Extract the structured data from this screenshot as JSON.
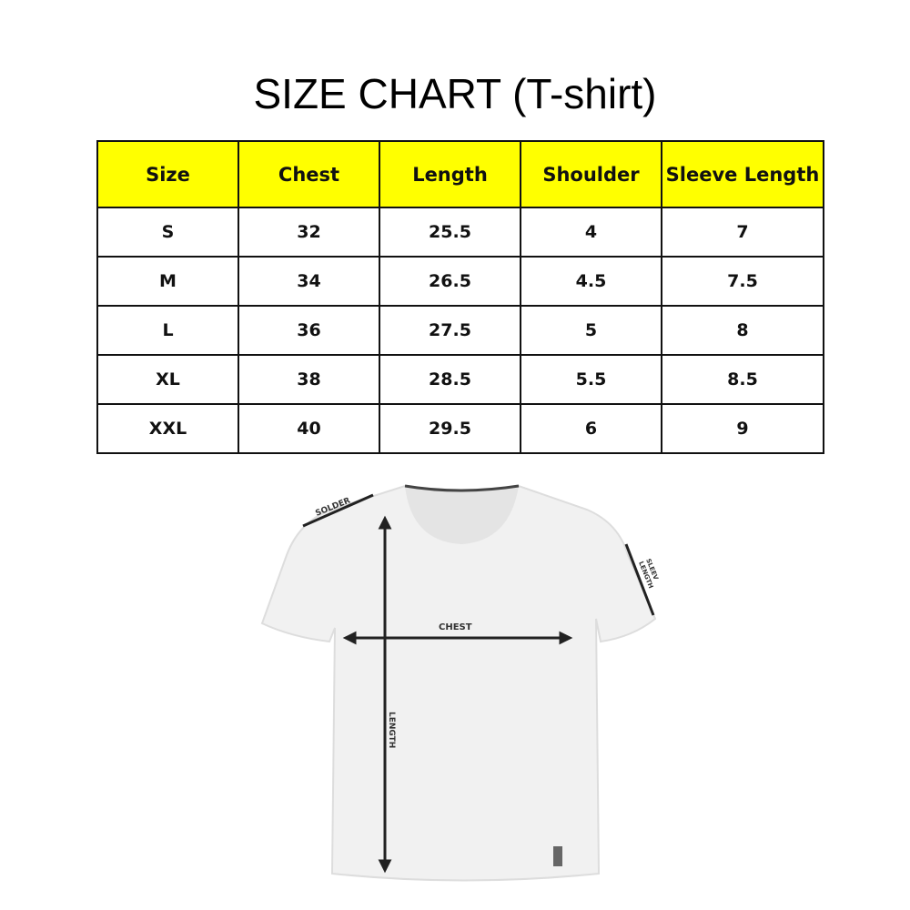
{
  "title": "SIZE CHART (T-shirt)",
  "table": {
    "headers": [
      "Size",
      "Chest",
      "Length",
      "Shoulder",
      "Sleeve Length"
    ],
    "rows": [
      [
        "S",
        "32",
        "25.5",
        "4",
        "7"
      ],
      [
        "M",
        "34",
        "26.5",
        "4.5",
        "7.5"
      ],
      [
        "L",
        "36",
        "27.5",
        "5",
        "8"
      ],
      [
        "XL",
        "38",
        "28.5",
        "5.5",
        "8.5"
      ],
      [
        "XXL",
        "40",
        "29.5",
        "6",
        "9"
      ]
    ],
    "header_color": "#ffff00"
  },
  "diagram": {
    "labels": {
      "shoulder": "SOLDER",
      "sleeve_line1": "SLEEV",
      "sleeve_line2": "LENGTH",
      "chest": "CHEST",
      "length": "LENGTH"
    }
  }
}
